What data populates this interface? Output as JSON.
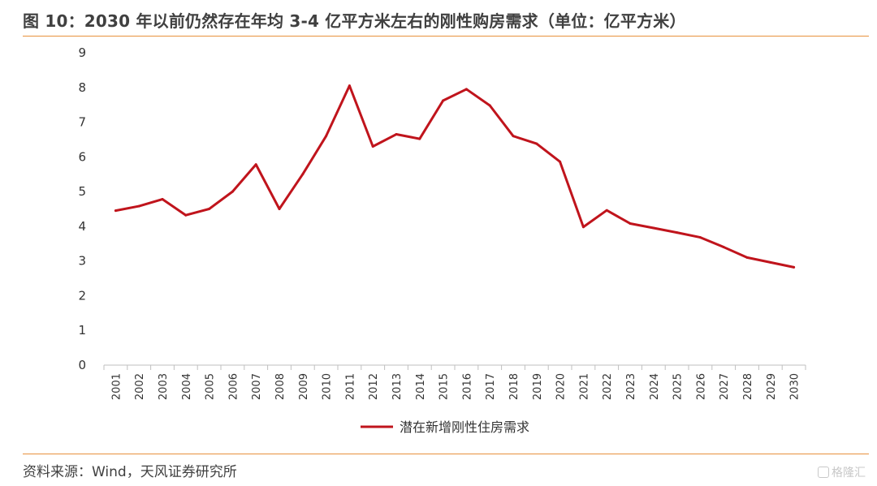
{
  "figure": {
    "title": "图 10：2030 年以前仍然存在年均 3-4 亿平方米左右的刚性购房需求（单位：亿平方米）",
    "source": "资料来源：Wind，天风证券研究所",
    "watermark": "格隆汇",
    "accent_color": "#e8913c"
  },
  "chart_data": {
    "type": "line",
    "title": "",
    "xlabel": "",
    "ylabel": "",
    "ylim": [
      0,
      9
    ],
    "yticks": [
      0,
      1,
      2,
      3,
      4,
      5,
      6,
      7,
      8,
      9
    ],
    "grid": false,
    "legend_position": "bottom",
    "categories": [
      "2001",
      "2002",
      "2003",
      "2004",
      "2005",
      "2006",
      "2007",
      "2008",
      "2009",
      "2010",
      "2011",
      "2012",
      "2013",
      "2014",
      "2015",
      "2016",
      "2017",
      "2018",
      "2019",
      "2020",
      "2021",
      "2022",
      "2023",
      "2024",
      "2025",
      "2026",
      "2027",
      "2028",
      "2029",
      "2030"
    ],
    "series": [
      {
        "name": "潜在新增刚性住房需求",
        "color": "#c0141c",
        "values": [
          4.45,
          4.58,
          4.78,
          4.32,
          4.5,
          5.0,
          5.78,
          4.5,
          5.5,
          6.6,
          8.05,
          6.3,
          6.65,
          6.52,
          7.62,
          7.95,
          7.48,
          6.6,
          6.38,
          5.86,
          3.98,
          4.46,
          4.08,
          3.95,
          3.82,
          3.68,
          3.4,
          3.1,
          2.96,
          2.82
        ]
      }
    ]
  }
}
